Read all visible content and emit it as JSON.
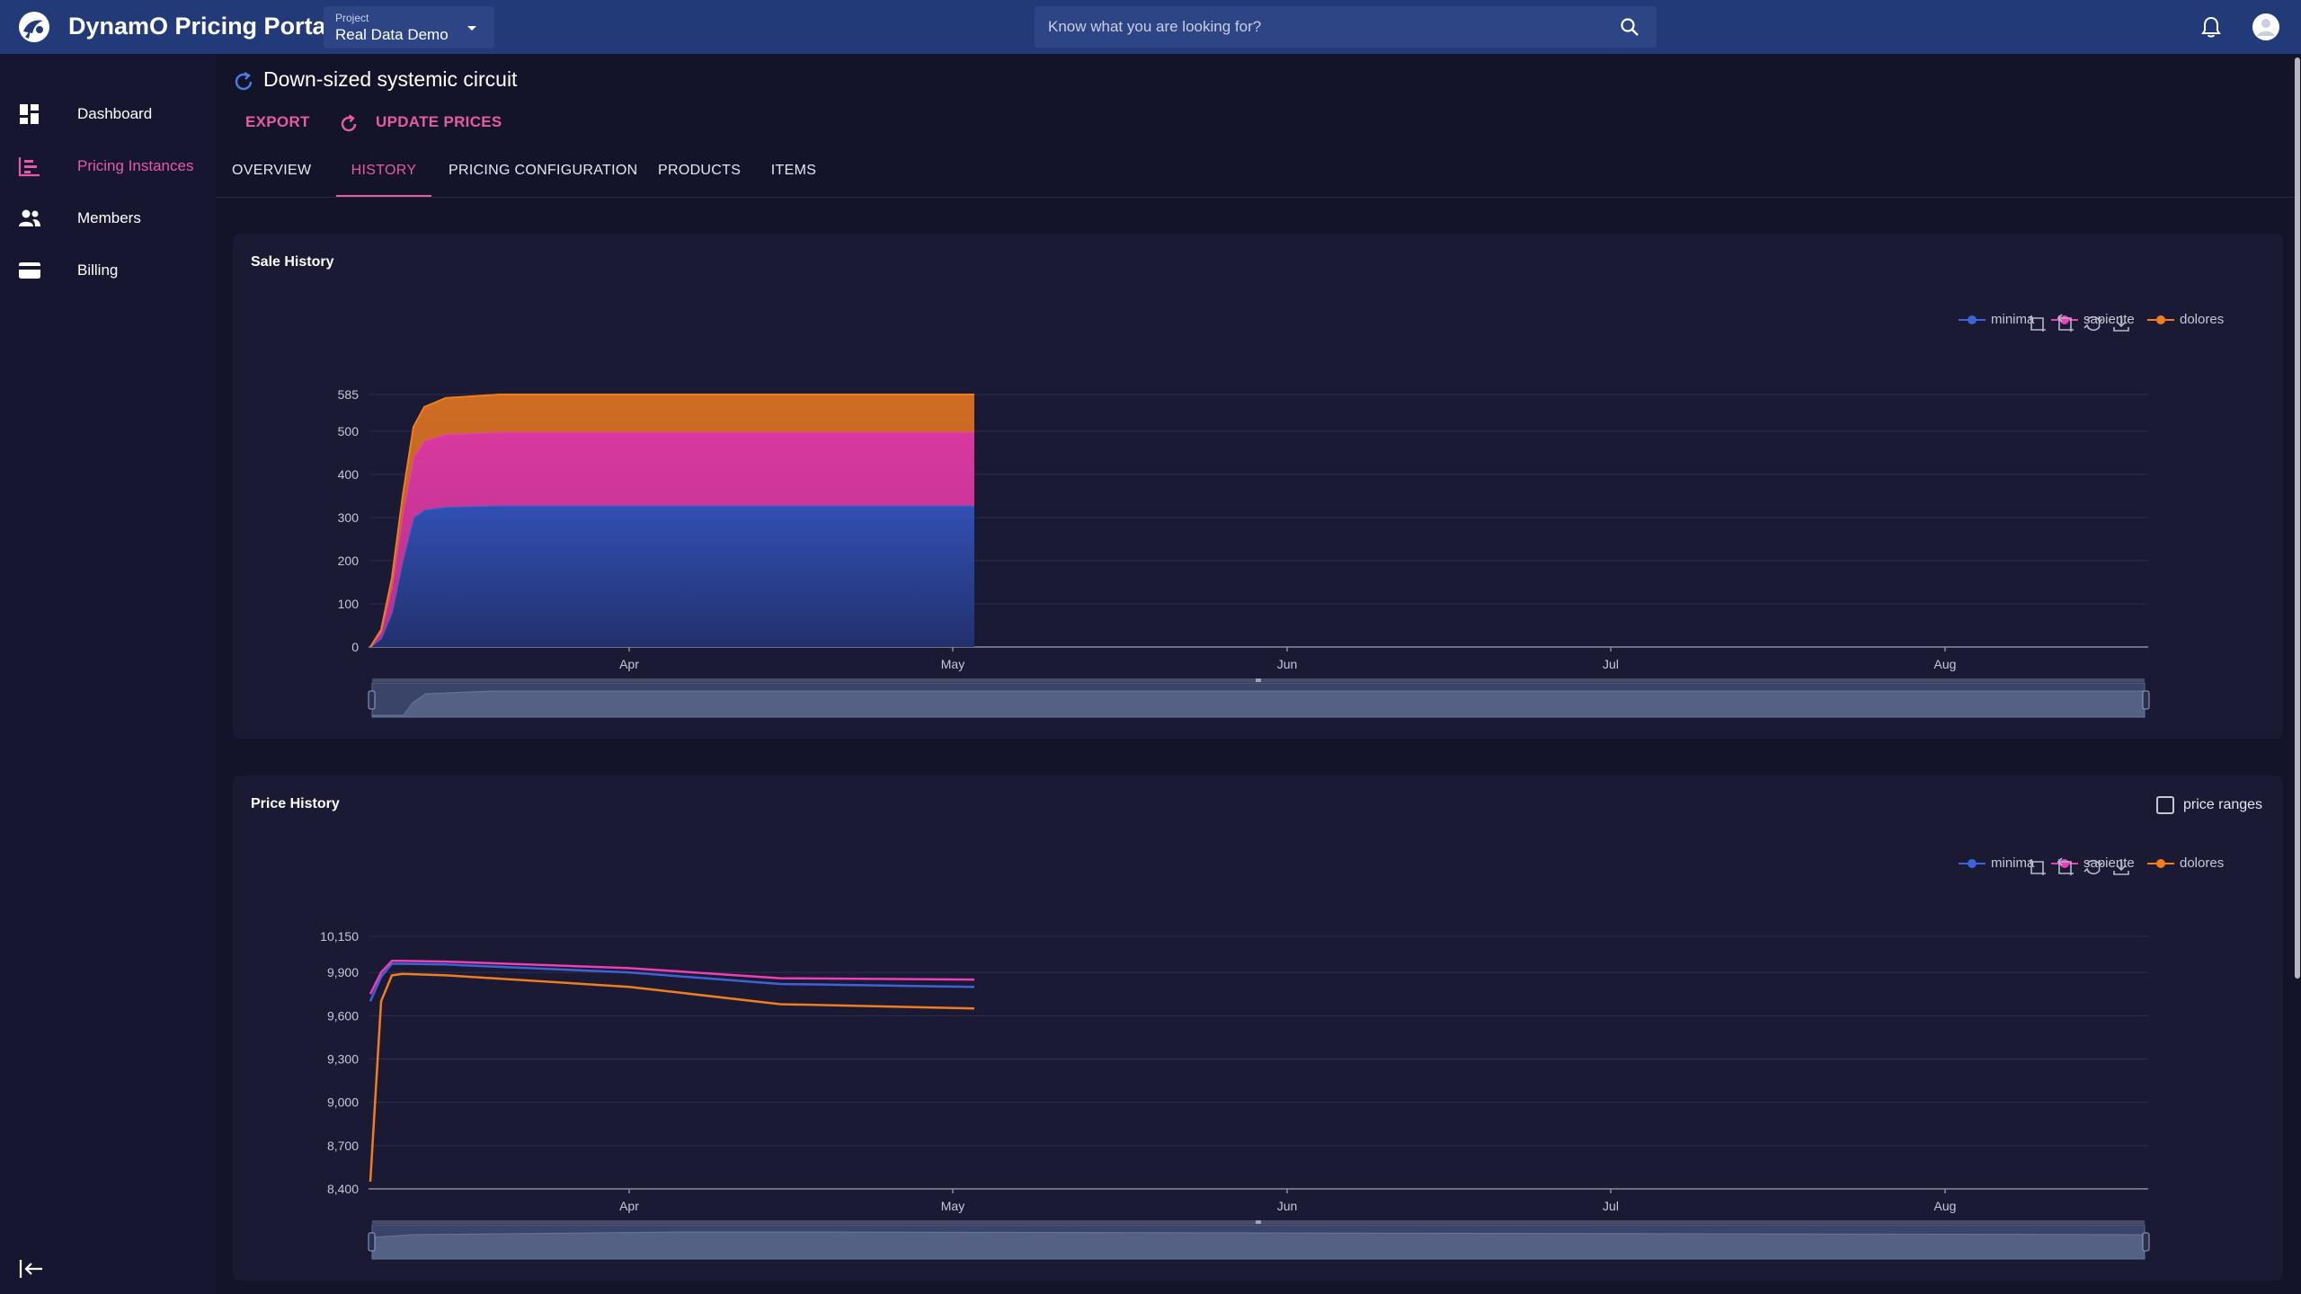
{
  "app": {
    "title": "DynamO Pricing Portal",
    "project_label": "Project",
    "project_value": "Real Data Demo",
    "search_placeholder": "Know what you are looking for?"
  },
  "sidebar": {
    "items": [
      {
        "label": "Dashboard",
        "icon": "dashboard-icon"
      },
      {
        "label": "Pricing Instances",
        "icon": "pricing-instances-icon",
        "active": true
      },
      {
        "label": "Members",
        "icon": "members-icon"
      },
      {
        "label": "Billing",
        "icon": "billing-icon"
      }
    ]
  },
  "page": {
    "title": "Down-sized systemic circuit",
    "actions": {
      "export": "EXPORT",
      "update_prices": "UPDATE PRICES"
    },
    "tabs": [
      "OVERVIEW",
      "HISTORY",
      "PRICING CONFIGURATION",
      "PRODUCTS",
      "ITEMS"
    ],
    "active_tab": "HISTORY"
  },
  "colors": {
    "accent": "#e65ba6",
    "topbar": "#233a78",
    "minima": "#3d63d6",
    "sapiente": "#ee3eb8",
    "dolores": "#f07e1e"
  },
  "chart_data": [
    {
      "type": "area",
      "stacked": true,
      "title": "Sale History",
      "legend": [
        "minima",
        "sapiente",
        "dolores"
      ],
      "x_ticks": [
        "Apr",
        "May",
        "Jun",
        "Jul",
        "Aug"
      ],
      "y_ticks": [
        "0",
        "100",
        "200",
        "300",
        "400",
        "500",
        "585"
      ],
      "ylim": [
        0,
        585
      ],
      "x": [
        "Mar 8",
        "Mar 9",
        "Mar 10",
        "Mar 11",
        "Mar 12",
        "Mar 13",
        "Mar 15",
        "Mar 20",
        "Apr 1",
        "May 3"
      ],
      "series": [
        {
          "name": "minima",
          "values": [
            0,
            20,
            80,
            200,
            300,
            318,
            325,
            328,
            328,
            328
          ]
        },
        {
          "name": "sapiente",
          "values": [
            0,
            15,
            60,
            110,
            140,
            160,
            168,
            170,
            170,
            170
          ]
        },
        {
          "name": "dolores",
          "values": [
            0,
            5,
            20,
            40,
            70,
            78,
            84,
            87,
            87,
            87
          ]
        }
      ]
    },
    {
      "type": "line",
      "title": "Price History",
      "checkbox_label": "price ranges",
      "legend": [
        "minima",
        "sapiente",
        "dolores"
      ],
      "x_ticks": [
        "Apr",
        "May",
        "Jun",
        "Jul",
        "Aug"
      ],
      "y_ticks": [
        "8,400",
        "8,700",
        "9,000",
        "9,300",
        "9,600",
        "9,900",
        "10,150"
      ],
      "ylim": [
        8400,
        10150
      ],
      "x": [
        "Mar 8",
        "Mar 9",
        "Mar 10",
        "Mar 11",
        "Mar 15",
        "Apr 1",
        "Apr 15",
        "May 3"
      ],
      "series": [
        {
          "name": "minima",
          "values": [
            9700,
            9870,
            9960,
            9960,
            9955,
            9900,
            9820,
            9800
          ]
        },
        {
          "name": "sapiente",
          "values": [
            9750,
            9900,
            9980,
            9980,
            9975,
            9930,
            9860,
            9850
          ]
        },
        {
          "name": "dolores",
          "values": [
            8450,
            9700,
            9880,
            9890,
            9880,
            9800,
            9680,
            9650
          ]
        }
      ]
    }
  ]
}
